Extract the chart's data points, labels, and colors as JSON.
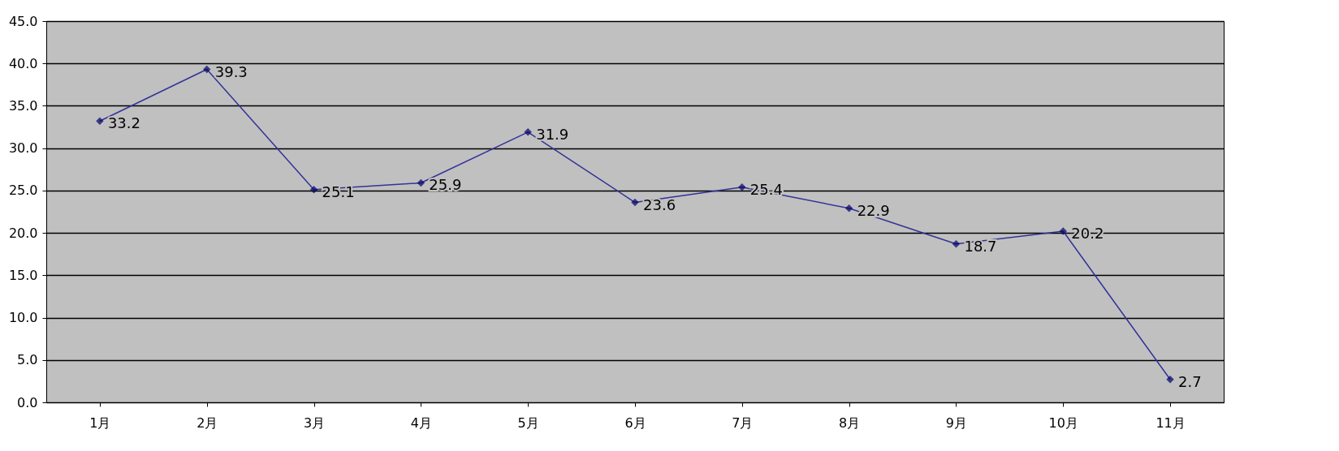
{
  "chart_data": {
    "type": "line",
    "categories": [
      "1月",
      "2月",
      "3月",
      "4月",
      "5月",
      "6月",
      "7月",
      "8月",
      "9月",
      "10月",
      "11月"
    ],
    "series": [
      {
        "color": "#333399",
        "values": [
          33.2,
          39.3,
          25.1,
          25.9,
          31.9,
          23.6,
          25.4,
          22.9,
          18.7,
          20.2,
          2.7
        ]
      }
    ],
    "ylim": [
      0,
      45
    ],
    "yticks": [
      {
        "value": 0,
        "label": "0.0"
      },
      {
        "value": 5,
        "label": "5.0"
      },
      {
        "value": 10,
        "label": "10.0"
      },
      {
        "value": 15,
        "label": "15.0"
      },
      {
        "value": 20,
        "label": "20.0"
      },
      {
        "value": 25,
        "label": "25.0"
      },
      {
        "value": 30,
        "label": "30.0"
      },
      {
        "value": 35,
        "label": "35.0"
      },
      {
        "value": 40,
        "label": "40.0"
      },
      {
        "value": 45,
        "label": "45.0"
      }
    ],
    "grid": "y",
    "marker": "diamond",
    "line_style": "solid",
    "data_labels": true
  }
}
